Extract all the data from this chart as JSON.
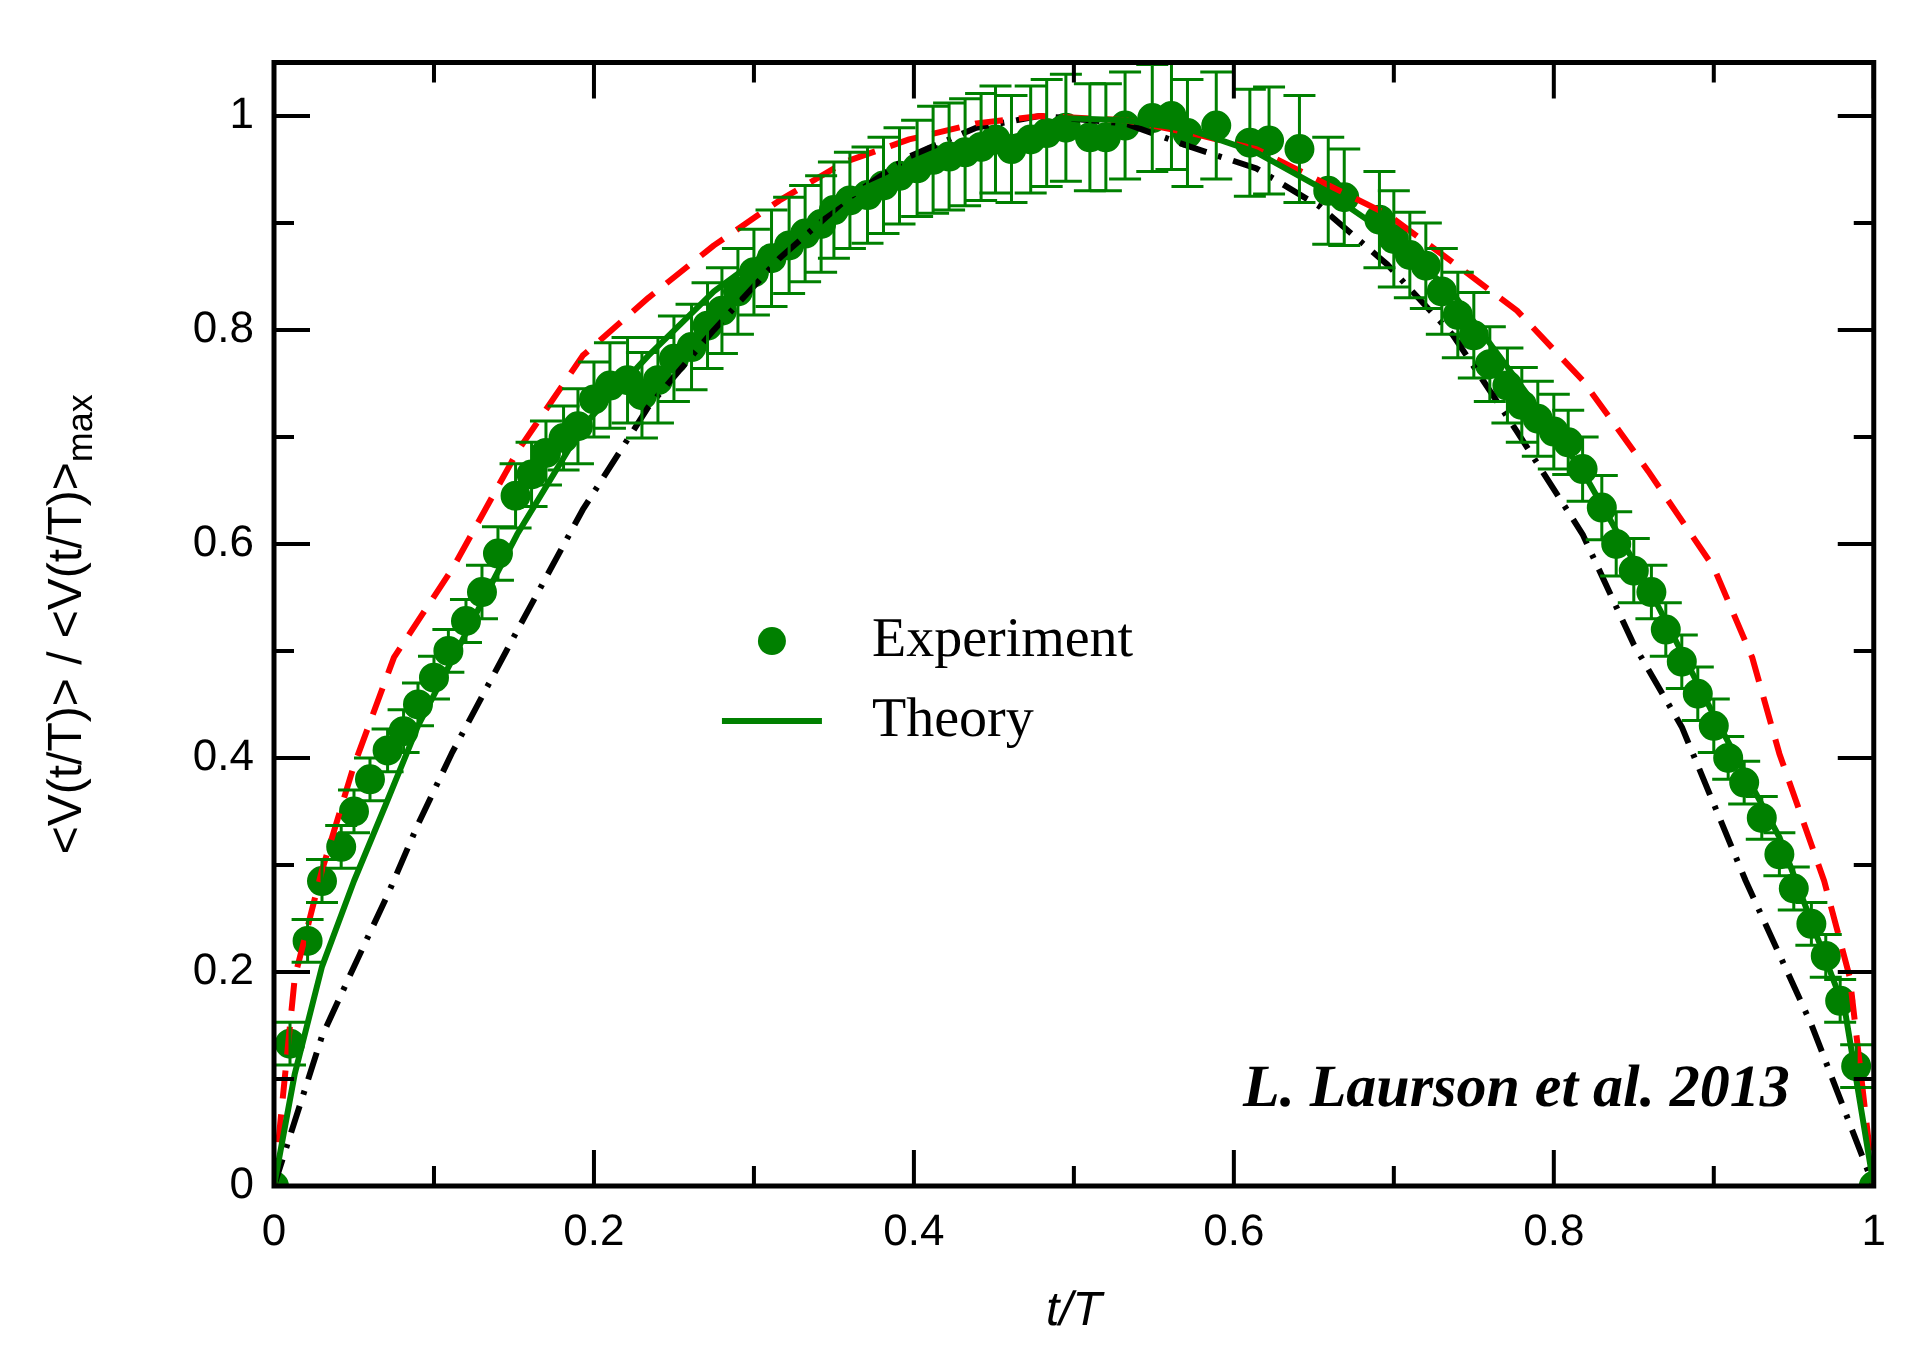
{
  "chart_data": {
    "type": "scatter",
    "xlabel": "t/T",
    "ylabel": "<V(t/T)> / <V(t/T)>$_{max}$",
    "xlim": [
      0,
      1
    ],
    "ylim": [
      0,
      1.05
    ],
    "xticks": [
      0,
      {
        "value": 0.1,
        "label": null
      },
      0.2,
      {
        "value": 0.3,
        "label": null
      },
      0.4,
      {
        "value": 0.5,
        "label": null
      },
      0.6,
      {
        "value": 0.7,
        "label": null
      },
      0.8,
      {
        "value": 0.9,
        "label": null
      },
      1
    ],
    "yticks": [
      0,
      {
        "value": 0.1,
        "label": null
      },
      0.2,
      {
        "value": 0.3,
        "label": null
      },
      0.4,
      {
        "value": 0.5,
        "label": null
      },
      0.6,
      {
        "value": 0.7,
        "label": null
      },
      0.8,
      {
        "value": 0.9,
        "label": null
      },
      1
    ],
    "grid": false,
    "legend": "center",
    "annotations": [
      "L. Laurson et al. 2013"
    ],
    "series": [
      {
        "name": "Experiment",
        "marker": "circle",
        "color": "#008000",
        "x": [
          0,
          0.01,
          0.021,
          0.03,
          0.042,
          0.05,
          0.06,
          0.071,
          0.081,
          0.09,
          0.1,
          0.109,
          0.12,
          0.13,
          0.14,
          0.151,
          0.161,
          0.17,
          0.181,
          0.19,
          0.2,
          0.21,
          0.221,
          0.23,
          0.24,
          0.25,
          0.261,
          0.271,
          0.28,
          0.29,
          0.3,
          0.311,
          0.322,
          0.332,
          0.342,
          0.35,
          0.36,
          0.371,
          0.381,
          0.391,
          0.402,
          0.412,
          0.422,
          0.432,
          0.442,
          0.451,
          0.461,
          0.473,
          0.483,
          0.495,
          0.51,
          0.52,
          0.532,
          0.549,
          0.561,
          0.571,
          0.589,
          0.61,
          0.622,
          0.641,
          0.659,
          0.669,
          0.691,
          0.7,
          0.71,
          0.72,
          0.73,
          0.74,
          0.75,
          0.76,
          0.771,
          0.78,
          0.79,
          0.8,
          0.809,
          0.818,
          0.83,
          0.839,
          0.85,
          0.861,
          0.87,
          0.88,
          0.89,
          0.9,
          0.909,
          0.919,
          0.93,
          0.941,
          0.95,
          0.961,
          0.97,
          0.979,
          0.989,
          1
        ],
        "values": [
          0,
          0.133,
          0.229,
          0.285,
          0.317,
          0.35,
          0.38,
          0.407,
          0.425,
          0.45,
          0.475,
          0.5,
          0.528,
          0.555,
          0.591,
          0.645,
          0.665,
          0.685,
          0.699,
          0.71,
          0.735,
          0.748,
          0.753,
          0.739,
          0.753,
          0.773,
          0.784,
          0.804,
          0.818,
          0.836,
          0.854,
          0.867,
          0.879,
          0.89,
          0.899,
          0.912,
          0.921,
          0.926,
          0.935,
          0.944,
          0.951,
          0.959,
          0.962,
          0.966,
          0.971,
          0.978,
          0.969,
          0.978,
          0.984,
          0.989,
          0.98,
          0.98,
          0.991,
          0.998,
          1.0,
          0.984,
          0.991,
          0.975,
          0.977,
          0.969,
          0.93,
          0.924,
          0.903,
          0.885,
          0.87,
          0.86,
          0.836,
          0.814,
          0.795,
          0.768,
          0.748,
          0.73,
          0.717,
          0.705,
          0.695,
          0.67,
          0.634,
          0.6,
          0.575,
          0.555,
          0.52,
          0.49,
          0.46,
          0.43,
          0.4,
          0.377,
          0.344,
          0.31,
          0.278,
          0.245,
          0.215,
          0.173,
          0.112,
          0
        ],
        "errors": [
          null,
          0.02,
          0.02,
          0.02,
          0.02,
          0.02,
          0.02,
          0.02,
          0.02,
          0.02,
          0.02,
          0.02,
          0.02,
          0.025,
          0.025,
          0.03,
          0.03,
          0.03,
          0.03,
          0.035,
          0.035,
          0.04,
          0.04,
          0.04,
          0.04,
          0.04,
          0.04,
          0.04,
          0.04,
          0.04,
          0.04,
          0.045,
          0.045,
          0.045,
          0.045,
          0.045,
          0.045,
          0.045,
          0.045,
          0.045,
          0.045,
          0.05,
          0.05,
          0.05,
          0.05,
          0.05,
          0.05,
          0.05,
          0.05,
          0.05,
          0.05,
          0.05,
          0.05,
          0.05,
          0.05,
          0.05,
          0.05,
          0.05,
          0.05,
          0.05,
          0.05,
          0.045,
          0.045,
          0.045,
          0.04,
          0.04,
          0.04,
          0.04,
          0.04,
          0.035,
          0.035,
          0.035,
          0.035,
          0.035,
          0.03,
          0.03,
          0.03,
          0.03,
          0.03,
          0.025,
          0.025,
          0.025,
          0.025,
          0.025,
          0.02,
          0.02,
          0.02,
          0.02,
          0.02,
          0.02,
          0.02,
          0.02,
          0.02,
          null
        ]
      },
      {
        "name": "Theory",
        "type": "line",
        "marker": "none",
        "line_style": "solid",
        "color": "#008000",
        "x": [
          0,
          0.013,
          0.03,
          0.05,
          0.07,
          0.09,
          0.152,
          0.193,
          0.234,
          0.275,
          0.316,
          0.357,
          0.397,
          0.439,
          0.479,
          0.491,
          0.532,
          0.573,
          0.614,
          0.654,
          0.696,
          0.737,
          0.777,
          0.818,
          0.859,
          0.9,
          0.941,
          0.982,
          1
        ],
        "values": [
          0,
          0.105,
          0.205,
          0.285,
          0.357,
          0.43,
          0.609,
          0.71,
          0.776,
          0.836,
          0.881,
          0.924,
          0.951,
          0.971,
          0.987,
          0.998,
          0.996,
          0.987,
          0.966,
          0.933,
          0.89,
          0.834,
          0.753,
          0.668,
          0.56,
          0.44,
          0.326,
          0.164,
          0
        ]
      },
      {
        "type": "line",
        "marker": "none",
        "line_style": "dashed",
        "color": "#ff0000",
        "x": [
          0,
          0.013,
          0.03,
          0.05,
          0.075,
          0.112,
          0.152,
          0.193,
          0.234,
          0.275,
          0.316,
          0.357,
          0.397,
          0.439,
          0.479,
          0.532,
          0.573,
          0.614,
          0.654,
          0.696,
          0.737,
          0.777,
          0.818,
          0.859,
          0.9,
          0.924,
          0.941,
          0.969,
          0.985,
          1
        ],
        "values": [
          0,
          0.195,
          0.295,
          0.393,
          0.494,
          0.578,
          0.686,
          0.776,
          0.83,
          0.879,
          0.921,
          0.957,
          0.978,
          0.993,
          1.0,
          0.996,
          0.984,
          0.969,
          0.939,
          0.908,
          0.863,
          0.818,
          0.753,
          0.668,
          0.578,
          0.494,
          0.404,
          0.285,
          0.195,
          0
        ]
      },
      {
        "type": "line",
        "marker": "none",
        "line_style": "dashdot",
        "color": "#000000",
        "x": [
          0,
          0.03,
          0.05,
          0.071,
          0.09,
          0.111,
          0.152,
          0.193,
          0.234,
          0.275,
          0.316,
          0.357,
          0.397,
          0.439,
          0.479,
          0.532,
          0.573,
          0.614,
          0.654,
          0.696,
          0.737,
          0.777,
          0.818,
          0.85,
          0.88,
          0.92,
          0.961,
          1
        ],
        "values": [
          0,
          0.14,
          0.205,
          0.272,
          0.338,
          0.404,
          0.519,
          0.632,
          0.728,
          0.8,
          0.867,
          0.921,
          0.962,
          0.989,
          1.0,
          0.993,
          0.971,
          0.951,
          0.915,
          0.861,
          0.795,
          0.705,
          0.609,
          0.506,
          0.429,
          0.285,
          0.151,
          0
        ]
      }
    ]
  }
}
